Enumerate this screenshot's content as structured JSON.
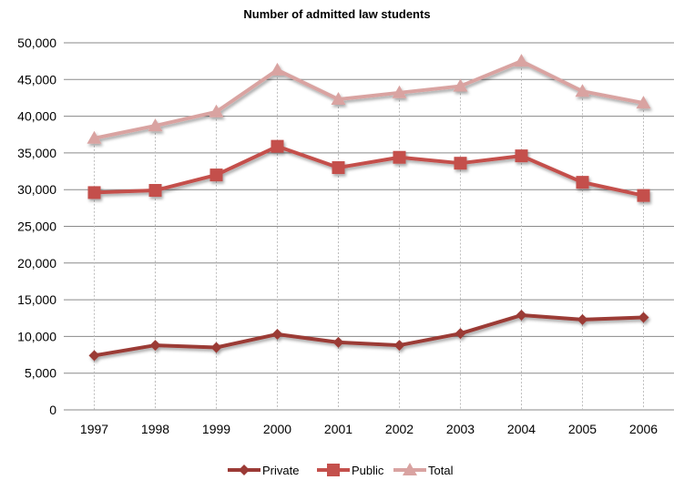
{
  "chart_data": {
    "type": "line",
    "title": "Number of admitted law students",
    "xlabel": "",
    "ylabel": "",
    "categories": [
      "1997",
      "1998",
      "1999",
      "2000",
      "2001",
      "2002",
      "2003",
      "2004",
      "2005",
      "2006"
    ],
    "ylim": [
      0,
      50000
    ],
    "yticks": [
      0,
      5000,
      10000,
      15000,
      20000,
      25000,
      30000,
      35000,
      40000,
      45000,
      50000
    ],
    "ytick_labels": [
      "0",
      "5,000",
      "10,000",
      "15,000",
      "20,000",
      "25,000",
      "30,000",
      "35,000",
      "40,000",
      "45,000",
      "50,000"
    ],
    "grid": "horizontal",
    "drop_lines": true,
    "legend_position": "bottom",
    "series": [
      {
        "name": "Private",
        "marker": "diamond",
        "color": "#9B3A36",
        "values": [
          7400,
          8800,
          8500,
          10300,
          9200,
          8800,
          10400,
          12900,
          12300,
          12600
        ]
      },
      {
        "name": "Public",
        "marker": "square",
        "color": "#C4504C",
        "values": [
          29600,
          29900,
          32000,
          35900,
          33000,
          34400,
          33600,
          34600,
          31000,
          29200
        ]
      },
      {
        "name": "Total",
        "marker": "triangle",
        "color": "#D9A3A1",
        "values": [
          37000,
          38700,
          40600,
          46300,
          42300,
          43200,
          44100,
          47500,
          43400,
          41800
        ]
      }
    ]
  }
}
